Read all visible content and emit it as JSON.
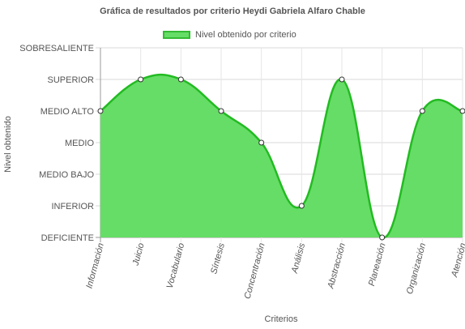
{
  "chart_data": {
    "type": "area",
    "title": "Gráfica de resultados por criterio Heydi Gabriela Alfaro Chable",
    "xlabel": "Criterios",
    "ylabel": "Nivel obtenido",
    "categories": [
      "Información",
      "Juicio",
      "Vocabulario",
      "Síntesis",
      "Concentración",
      "Análisis",
      "Abstracción",
      "Planeación",
      "Organización",
      "Atención"
    ],
    "y_levels": [
      "DEFICIENTE",
      "INFERIOR",
      "MEDIO BAJO",
      "MEDIO",
      "MEDIO ALTO",
      "SUPERIOR",
      "SOBRESALIENTE"
    ],
    "series": [
      {
        "name": "Nivel obtenido por criterio",
        "values": [
          4,
          5,
          5,
          4,
          3,
          1,
          5,
          0,
          4,
          4
        ]
      }
    ],
    "ylim": [
      0,
      6
    ],
    "grid": true,
    "legend_position": "top",
    "colors": {
      "fill": "#66dd66",
      "line": "#22bb22",
      "grid": "#e2e2e2",
      "axis": "#999999"
    }
  }
}
